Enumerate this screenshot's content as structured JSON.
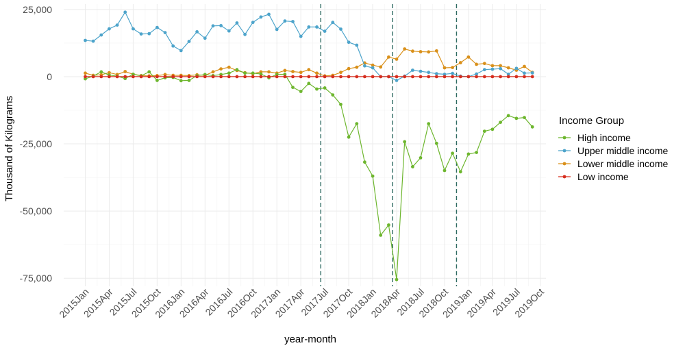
{
  "chart_data": {
    "type": "line",
    "xlabel": "year-month",
    "ylabel": "Thousand of Kilograms",
    "ylim": [
      -78000,
      27000
    ],
    "yticks": [
      25000,
      0,
      -25000,
      -50000,
      -75000
    ],
    "ytick_labels": [
      "25,000",
      "0",
      "-25,000",
      "-50,000",
      "-75,000"
    ],
    "x_start": "2015Jan",
    "xlim_index": [
      -2.7,
      57.7
    ],
    "xtick_index": [
      0,
      3,
      6,
      9,
      12,
      15,
      18,
      21,
      24,
      27,
      30,
      33,
      36,
      39,
      42,
      45,
      48,
      51,
      54,
      57
    ],
    "xtick_labels": [
      "2015Jan",
      "2015Apr",
      "2015Jul",
      "2015Oct",
      "2016Jan",
      "2016Apr",
      "2016Jul",
      "2016Oct",
      "2017Jan",
      "2017Apr",
      "2017Jul",
      "2017Oct",
      "2018Jan",
      "2018Apr",
      "2018Jul",
      "2018Oct",
      "2019Jan",
      "2019Apr",
      "2019Jul",
      "2019Oct"
    ],
    "vlines_index": [
      29.5,
      38.5,
      46.5
    ],
    "grid": true,
    "legend": {
      "title": "Income Group",
      "position": "right"
    },
    "series": [
      {
        "name": "High income",
        "color": "#6db62e",
        "start_index": 0,
        "values": [
          -800,
          200,
          1800,
          600,
          200,
          -700,
          900,
          300,
          1800,
          -1400,
          -400,
          -300,
          -1500,
          -1400,
          400,
          800,
          400,
          800,
          1300,
          2600,
          1300,
          1300,
          1000,
          -400,
          800,
          900,
          -4000,
          -5500,
          -2500,
          -4600,
          -4200,
          -6800,
          -10300,
          -22500,
          -17500,
          -31800,
          -37000,
          -59000,
          -55200,
          -75500,
          -24200,
          -33500,
          -30200,
          -17500,
          -24800,
          -34900,
          -28500,
          -35400,
          -28800,
          -28200,
          -20300,
          -19600,
          -17000,
          -14500,
          -15500,
          -15200,
          -18700
        ]
      },
      {
        "name": "Upper middle income",
        "color": "#4da4cb",
        "start_index": 0,
        "values": [
          13500,
          13200,
          15500,
          17800,
          19200,
          24000,
          17800,
          15900,
          16000,
          18300,
          16400,
          11400,
          9700,
          13100,
          16700,
          14300,
          18900,
          19000,
          17000,
          20000,
          15700,
          20200,
          22200,
          23200,
          17600,
          20700,
          20500,
          15000,
          18500,
          18500,
          16900,
          20200,
          17700,
          12800,
          11700,
          4000,
          3300,
          0,
          0,
          -1400,
          200,
          2400,
          2000,
          1600,
          1100,
          900,
          1200,
          200,
          0,
          1000,
          2600,
          2800,
          3000,
          900,
          3100,
          1300,
          1400
        ]
      },
      {
        "name": "Lower middle income",
        "color": "#d9901a",
        "start_index": 0,
        "values": [
          1300,
          500,
          700,
          1500,
          800,
          1900,
          900,
          400,
          300,
          400,
          800,
          500,
          500,
          400,
          700,
          500,
          1800,
          2900,
          3500,
          2300,
          1500,
          1100,
          1800,
          1800,
          1300,
          2300,
          1900,
          1600,
          2600,
          1300,
          300,
          500,
          1600,
          3000,
          3500,
          5100,
          4300,
          3600,
          7300,
          6500,
          10300,
          9500,
          9300,
          9200,
          9600,
          3300,
          3400,
          5200,
          7300,
          4600,
          4900,
          4100,
          4100,
          3300,
          2400,
          3800,
          1600
        ]
      },
      {
        "name": "Low income",
        "color": "#d62e1f",
        "start_index": 0,
        "values": [
          0,
          0,
          0,
          0,
          0,
          0,
          0,
          0,
          0,
          0,
          0,
          0,
          0,
          0,
          0,
          0,
          0,
          0,
          0,
          0,
          0,
          0,
          0,
          0,
          0,
          0,
          0,
          0,
          0,
          0,
          0,
          0,
          0,
          0,
          0,
          0,
          0,
          0,
          0,
          0,
          0,
          0,
          0,
          0,
          0,
          0,
          0,
          0,
          0,
          0,
          0,
          0,
          0,
          0,
          0,
          0,
          0
        ]
      }
    ]
  }
}
